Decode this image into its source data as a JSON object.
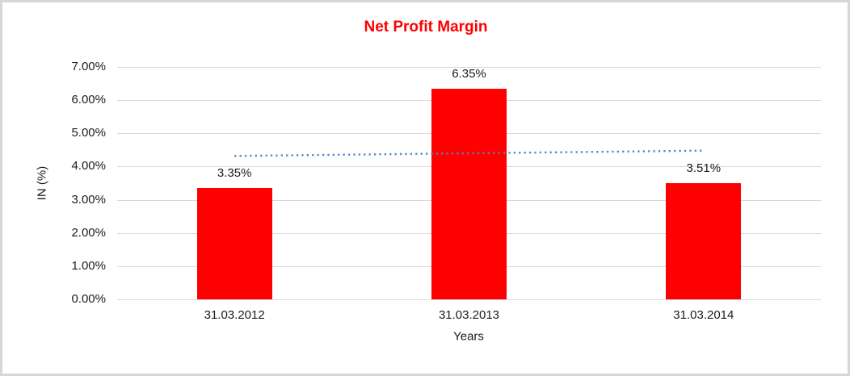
{
  "chart_data": {
    "type": "bar",
    "title": "Net Profit Margin",
    "title_color": "#FF0000",
    "categories": [
      "31.03.2012",
      "31.03.2013",
      "31.03.2014"
    ],
    "values": [
      3.35,
      6.35,
      3.51
    ],
    "data_labels": [
      "3.35%",
      "6.35%",
      "3.51%"
    ],
    "bar_color": "#FF0000",
    "xlabel": "Years",
    "ylabel": "IN (%)",
    "ylim": [
      0,
      7
    ],
    "ytick_step": 1,
    "ytick_labels": [
      "0.00%",
      "1.00%",
      "2.00%",
      "3.00%",
      "4.00%",
      "5.00%",
      "6.00%",
      "7.00%"
    ],
    "grid": true,
    "gridline_color": "#D9D9D9",
    "legend": "none",
    "trendline": {
      "style": "dotted",
      "color": "#4E86C8",
      "start_category_index": 0,
      "end_category_index": 2,
      "start_value": 4.32,
      "end_value": 4.48
    }
  }
}
